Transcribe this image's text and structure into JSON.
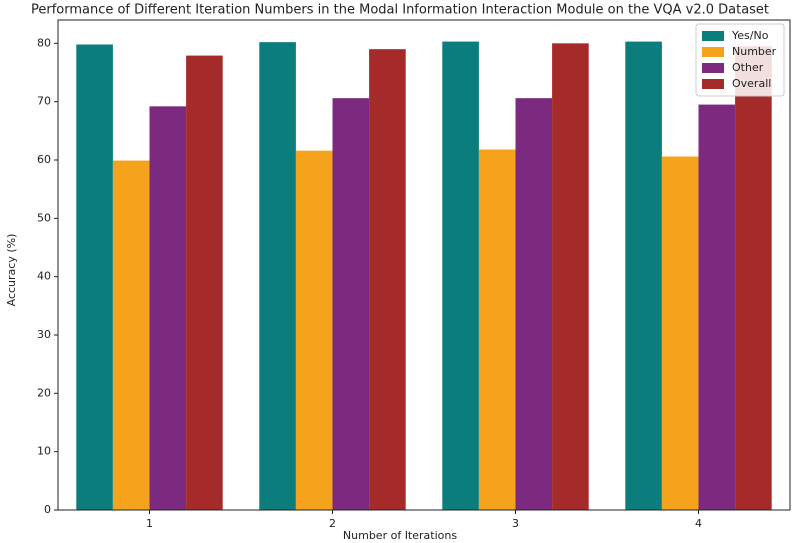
{
  "chart_data": {
    "type": "bar",
    "title": "Performance of Different Iteration Numbers in the Modal Information Interaction Module on the VQA v2.0 Dataset",
    "x_label": "Number of Iterations",
    "y_label": "Accuracy (%)",
    "categories": [
      "1",
      "2",
      "3",
      "4"
    ],
    "series": [
      {
        "name": "Yes/No",
        "color": "#0b7d7d",
        "values": [
          79.8,
          80.2,
          80.3,
          80.3
        ]
      },
      {
        "name": "Number",
        "color": "#f5a31c",
        "values": [
          59.9,
          61.6,
          61.8,
          60.6
        ]
      },
      {
        "name": "Other",
        "color": "#7b2a7f",
        "values": [
          69.2,
          70.6,
          70.6,
          69.5
        ]
      },
      {
        "name": "Overall",
        "color": "#a52a2a",
        "values": [
          77.9,
          79.0,
          80.0,
          79.5
        ]
      }
    ],
    "ylim": [
      0,
      84
    ],
    "yticks": [
      0,
      10,
      20,
      30,
      40,
      50,
      60,
      70,
      80
    ],
    "legend": "upper right"
  }
}
